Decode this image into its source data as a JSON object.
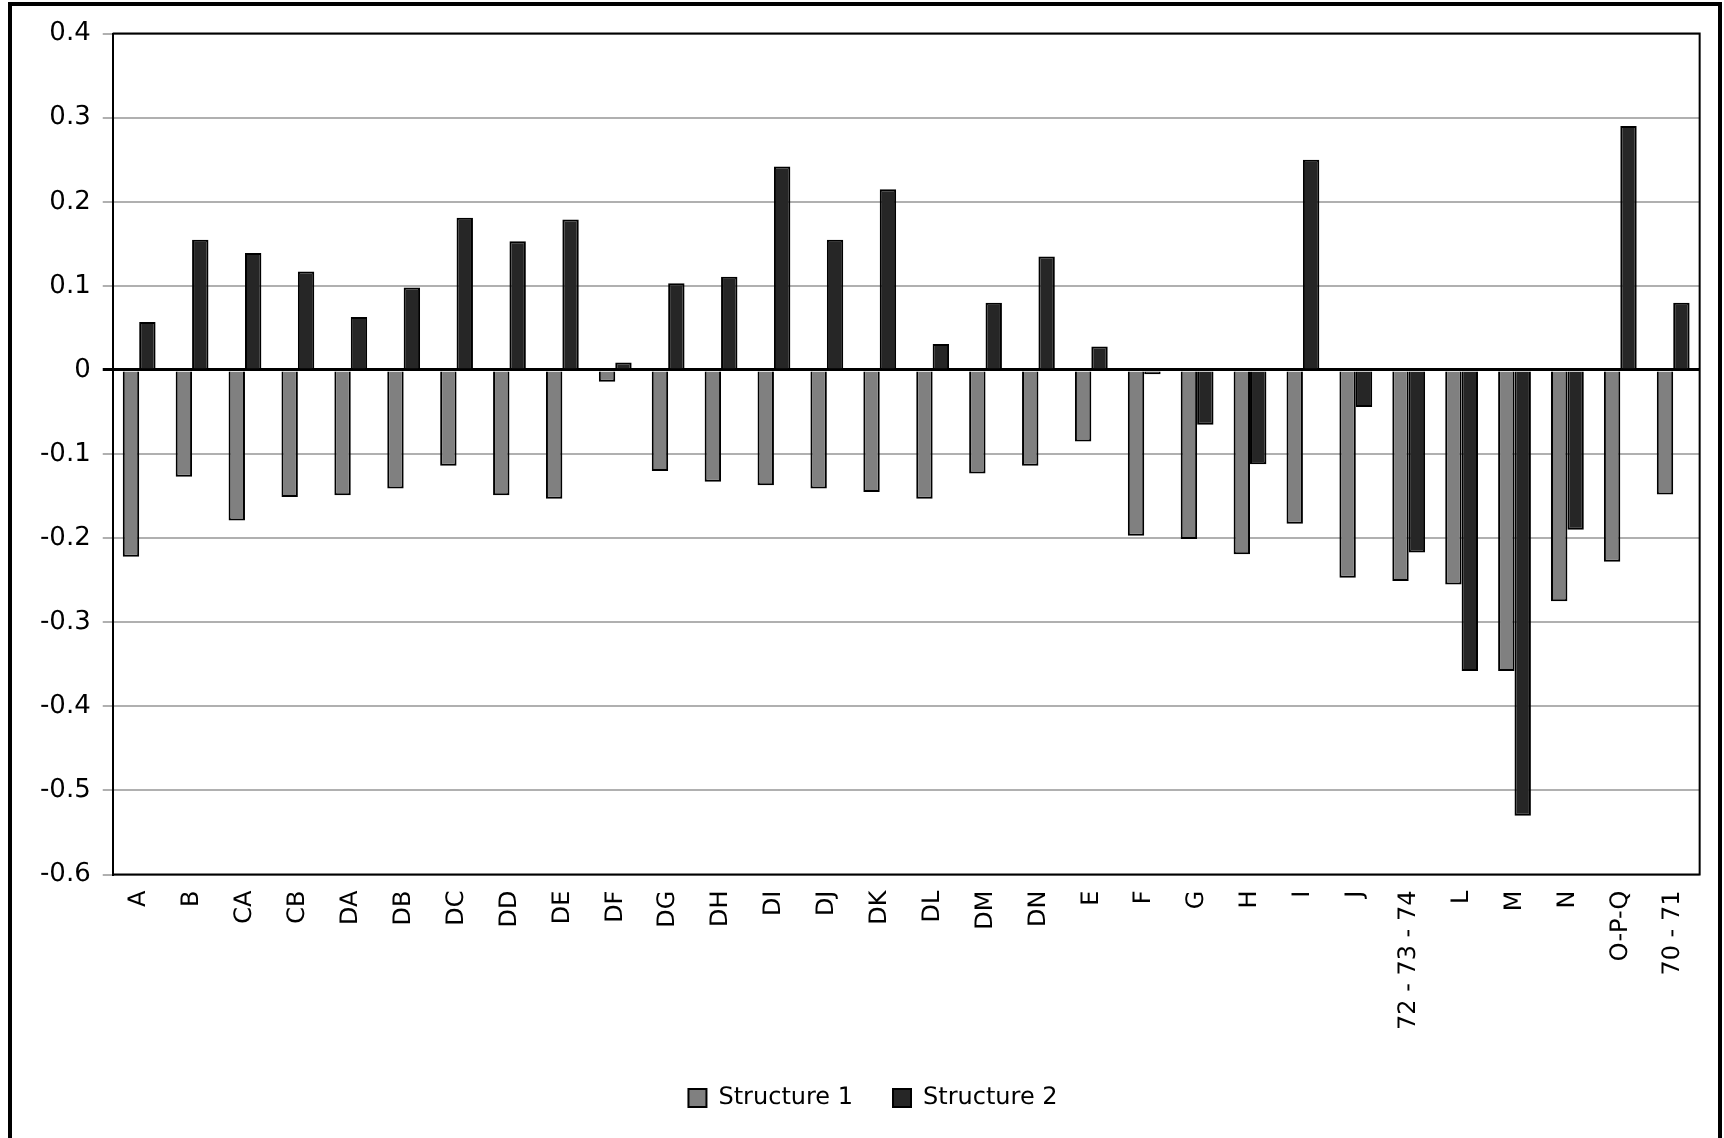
{
  "chart_data": {
    "type": "bar",
    "categories": [
      "A",
      "B",
      "CA",
      "CB",
      "DA",
      "DB",
      "DC",
      "DD",
      "DE",
      "DF",
      "DG",
      "DH",
      "DI",
      "DJ",
      "DK",
      "DL",
      "DM",
      "DN",
      "E",
      "F",
      "G",
      "H",
      "I",
      "J",
      "72 - 73 - 74",
      "L",
      "M",
      "N",
      "O-P-Q",
      "70 - 71"
    ],
    "series": [
      {
        "name": "Structure 1",
        "color": "#808080",
        "values": [
          -0.222,
          -0.127,
          -0.179,
          -0.151,
          -0.149,
          -0.141,
          -0.114,
          -0.149,
          -0.153,
          -0.014,
          -0.12,
          -0.133,
          -0.137,
          -0.141,
          -0.145,
          -0.153,
          -0.123,
          -0.114,
          -0.085,
          -0.197,
          -0.201,
          -0.219,
          -0.183,
          -0.247,
          -0.251,
          -0.255,
          -0.358,
          -0.275,
          -0.228,
          -0.148
        ]
      },
      {
        "name": "Structure 2",
        "color": "#262626",
        "values": [
          0.057,
          0.155,
          0.139,
          0.117,
          0.063,
          0.098,
          0.181,
          0.153,
          0.179,
          0.009,
          0.103,
          0.111,
          0.242,
          0.155,
          0.215,
          0.031,
          0.08,
          0.135,
          0.028,
          -0.005,
          -0.065,
          -0.112,
          0.25,
          -0.044,
          -0.217,
          -0.358,
          -0.53,
          -0.19,
          0.29,
          0.08
        ]
      }
    ],
    "ylim": [
      -0.6,
      0.4
    ],
    "yticks": [
      -0.6,
      -0.5,
      -0.4,
      -0.3,
      -0.2,
      -0.1,
      0,
      0.1,
      0.2,
      0.3,
      0.4
    ],
    "grid": "y",
    "legend": "bottom"
  }
}
